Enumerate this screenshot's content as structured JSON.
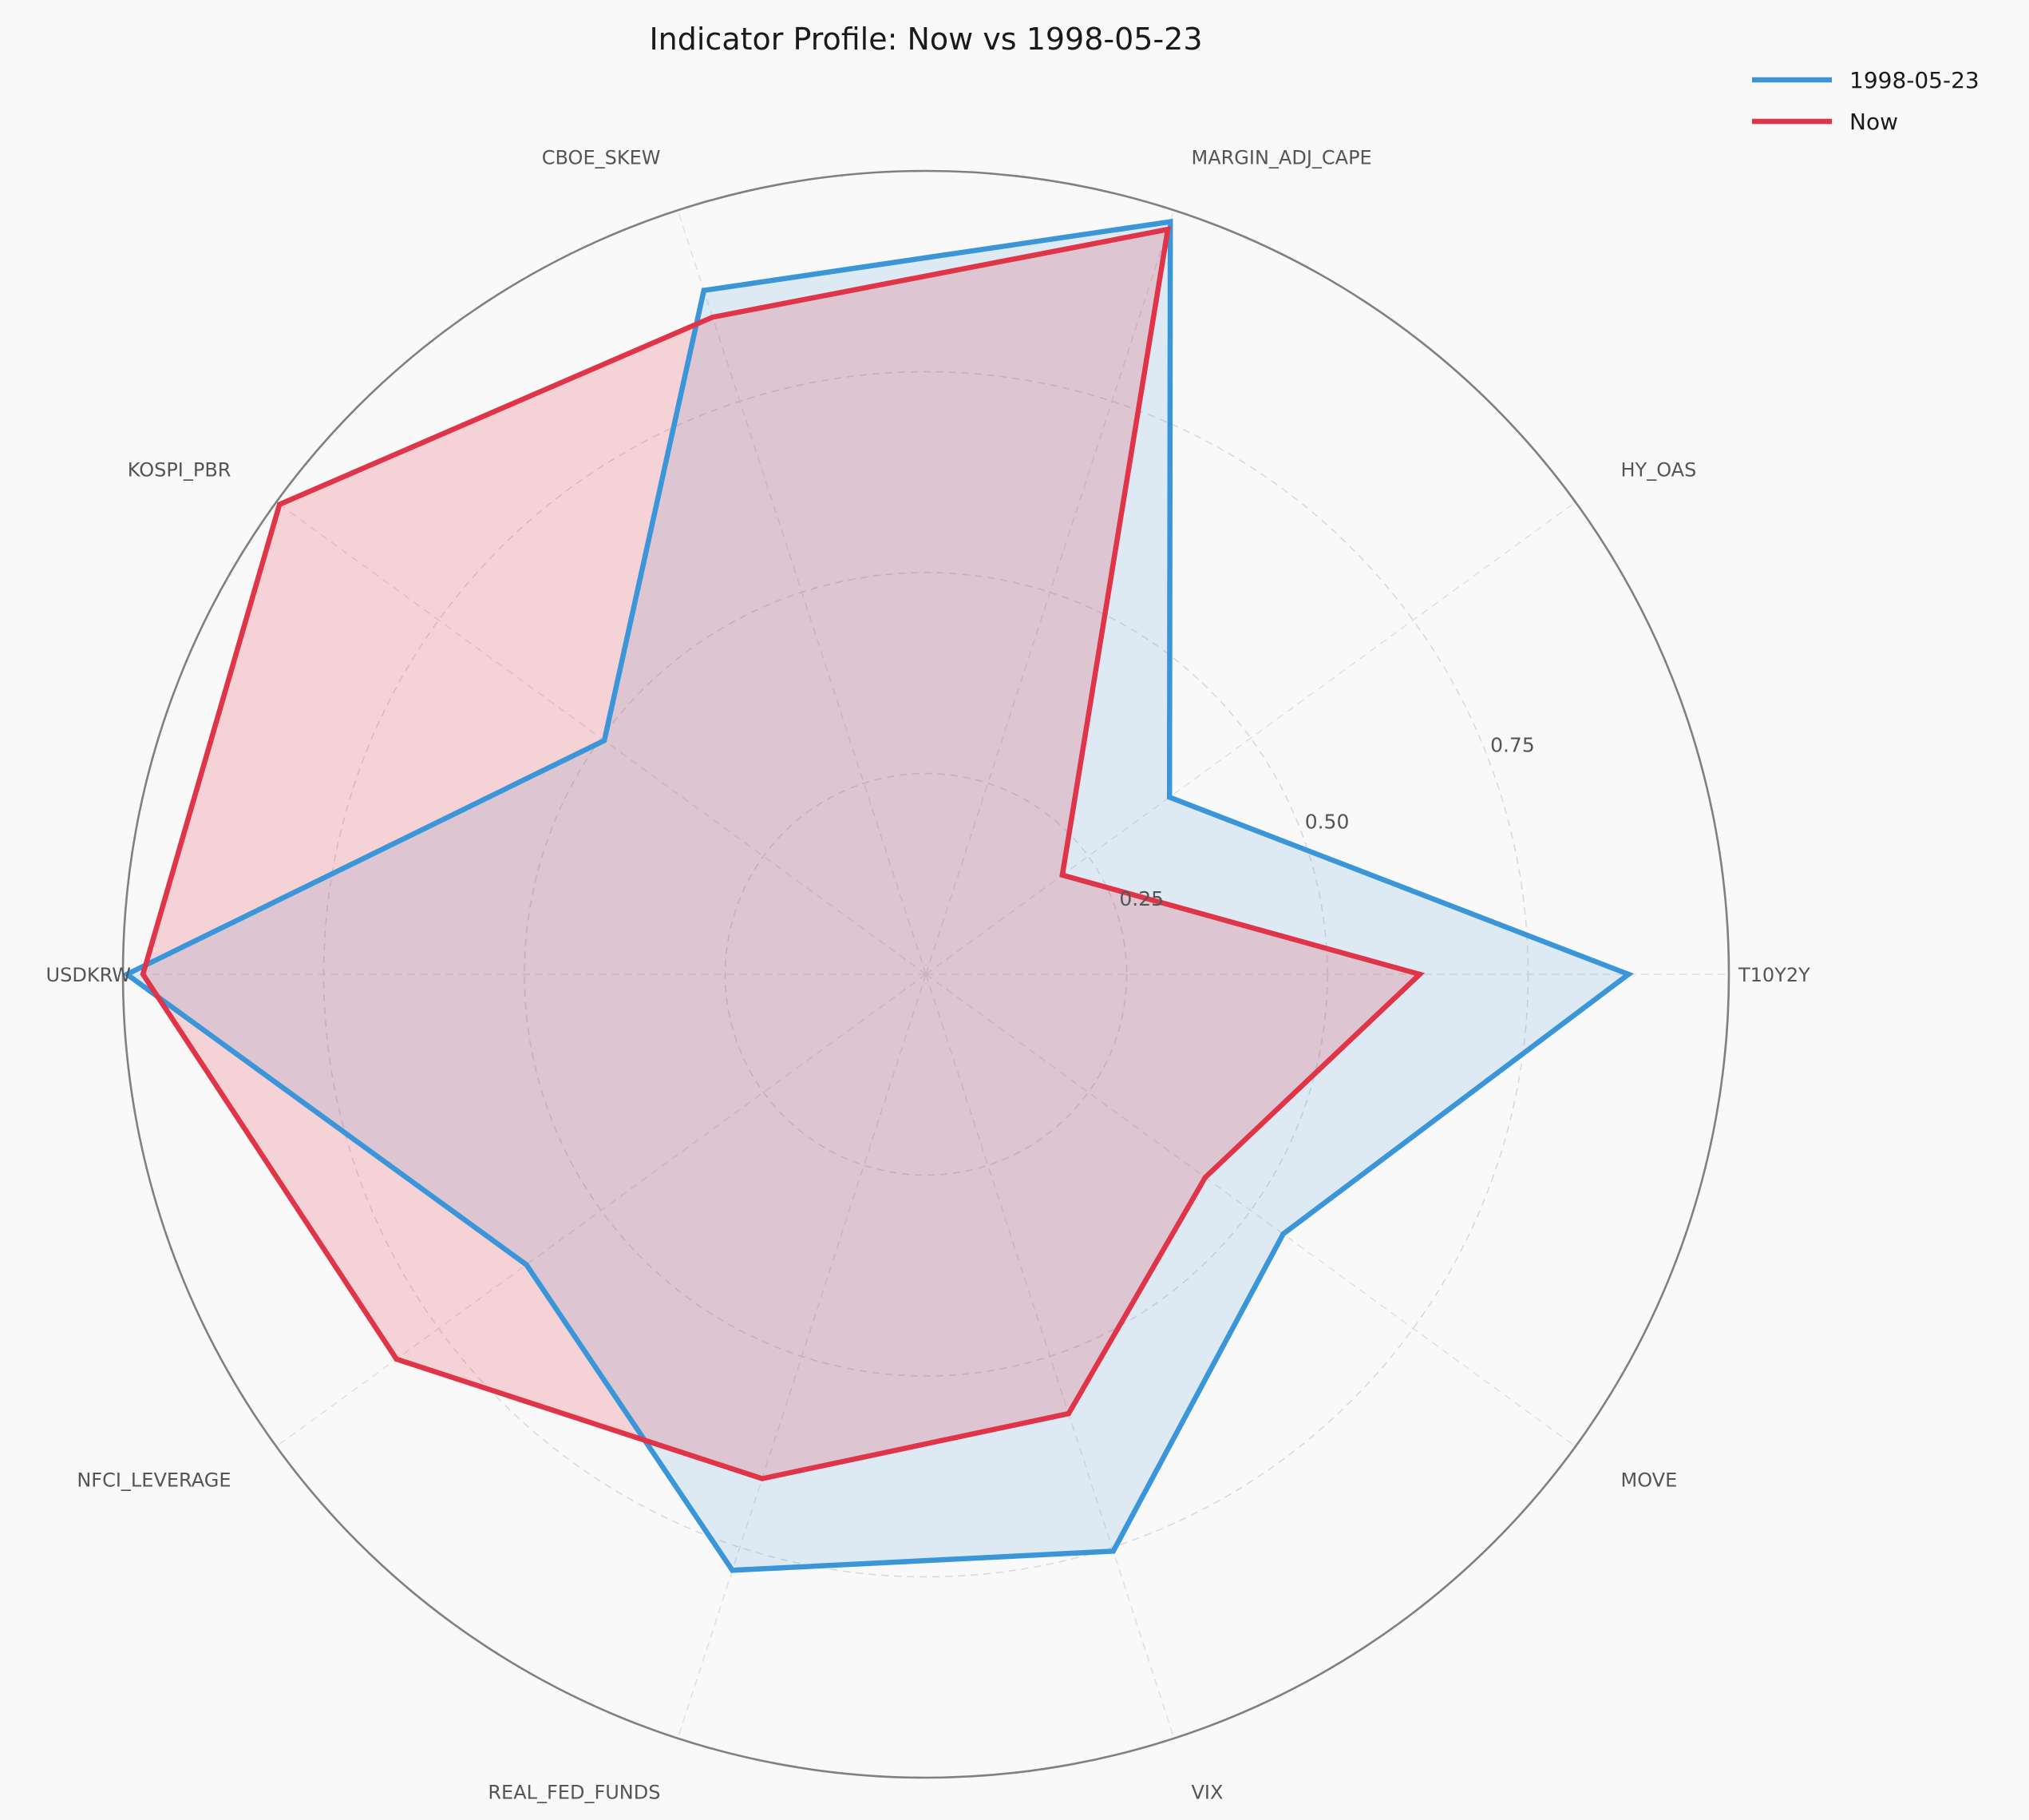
{
  "chart_data": {
    "type": "radar",
    "title": "Indicator Profile: Now vs 1998-05-23",
    "axes": [
      "T10Y2Y",
      "HY_OAS",
      "MARGIN_ADJ_CAPE",
      "CBOE_SKEW",
      "KOSPI_PBR",
      "USDKRW",
      "NFCI_LEVERAGE",
      "REAL_FED_FUNDS",
      "VIX",
      "MOVE"
    ],
    "rlim": [
      0,
      1
    ],
    "rticks": [
      0.25,
      0.5,
      0.75
    ],
    "rtick_labels": [
      "0.25",
      "0.50",
      "0.75"
    ],
    "grid": true,
    "legend_position": "top-right",
    "series": [
      {
        "name": "1998-05-23",
        "color": "#3a96d8",
        "fill": "rgba(58,150,216,0.15)",
        "values": [
          0.875,
          0.375,
          0.985,
          0.895,
          0.495,
          0.995,
          0.615,
          0.78,
          0.755,
          0.55
        ]
      },
      {
        "name": "Now",
        "color": "#e03548",
        "fill": "rgba(224,53,72,0.2)",
        "values": [
          0.615,
          0.21,
          0.975,
          0.86,
          0.995,
          0.975,
          0.815,
          0.66,
          0.575,
          0.43
        ]
      }
    ]
  }
}
